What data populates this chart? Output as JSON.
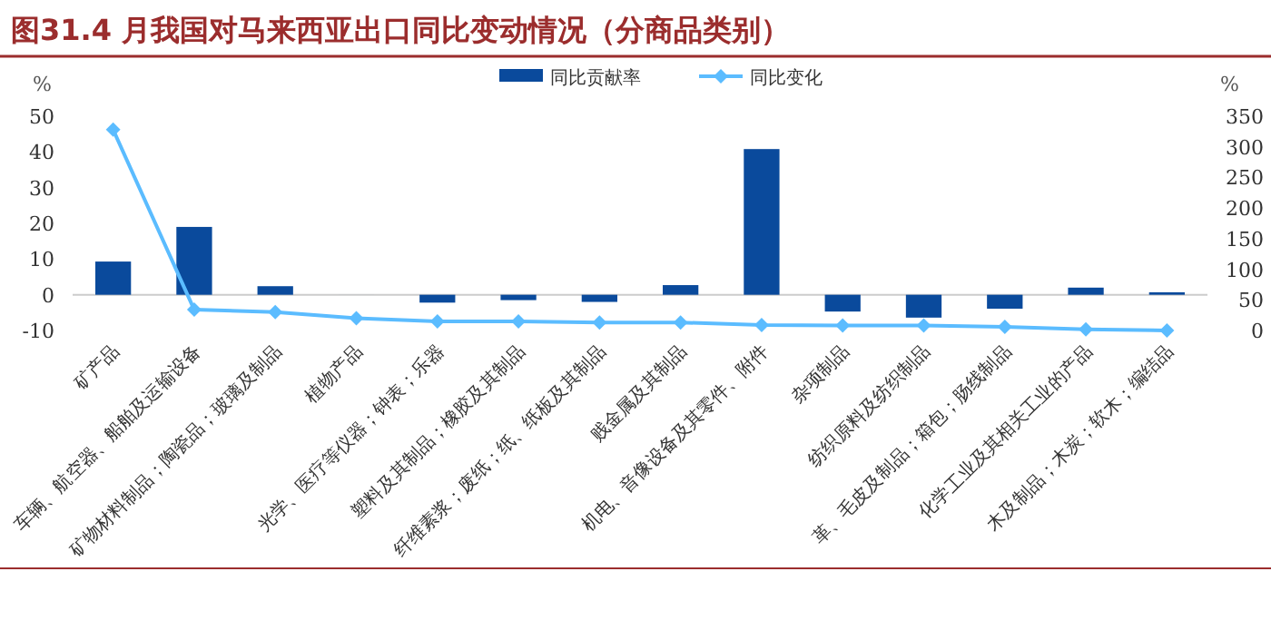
{
  "chart_data": {
    "type": "bar",
    "title": "图31.4 月我国对马来西亚出口同比变动情况（分商品类别）",
    "ylabel": "%",
    "y2label": "%",
    "categories": [
      "矿产品",
      "车辆、航空器、船舶及运输设备",
      "矿物材料制品；陶瓷品；玻璃及制品",
      "植物产品",
      "光学、医疗等仪器；钟表；乐器",
      "塑料及其制品；橡胶及其制品",
      "纤维素浆；废纸；纸、纸板及其制品",
      "贱金属及其制品",
      "机电、音像设备及其零件、附件",
      "杂项制品",
      "纺织原料及纺织制品",
      "革、毛皮及制品；箱包；肠线制品",
      "化学工业及其相关工业的产品",
      "木及制品；木炭；软木；编结品"
    ],
    "series": [
      {
        "name": "同比贡献率",
        "color": "#0a4a9c",
        "values": [
          9.3,
          19.0,
          2.4,
          0,
          -2.2,
          -1.5,
          -2.0,
          2.7,
          40.8,
          -4.7,
          -6.4,
          -3.9,
          2.0,
          0.7
        ]
      },
      {
        "name": "同比变化",
        "type": "line",
        "axis": "y2",
        "color": "#5bbcff",
        "marker": "diamond",
        "values": [
          328,
          34,
          30,
          20,
          15,
          15,
          13,
          13,
          9,
          8,
          8,
          6,
          2,
          0
        ]
      }
    ],
    "ylim": [
      -10,
      50
    ],
    "yticks": [
      -10,
      0,
      10,
      20,
      30,
      40,
      50
    ],
    "y2lim": [
      0,
      350
    ],
    "y2ticks": [
      0,
      50,
      100,
      150,
      200,
      250,
      300,
      350
    ],
    "legend": "top"
  }
}
